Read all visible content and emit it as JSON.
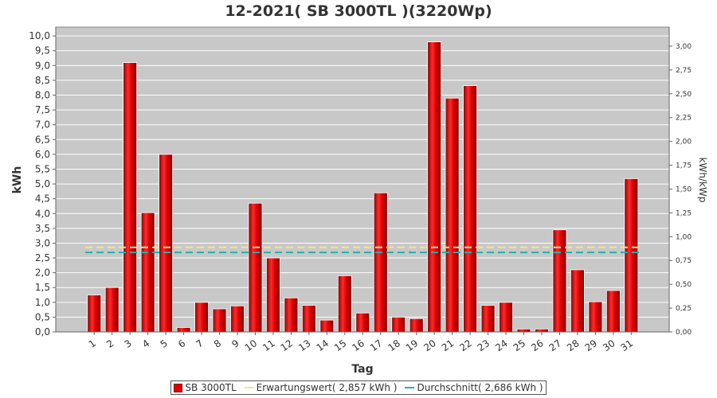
{
  "chart_data": {
    "type": "bar",
    "title": "12-2021( SB 3000TL )(3220Wp)",
    "xlabel": "Tag",
    "ylabel": "kWh",
    "y2label": "kWh/kWp",
    "categories": [
      "1",
      "2",
      "3",
      "4",
      "5",
      "6",
      "7",
      "8",
      "9",
      "10",
      "11",
      "12",
      "13",
      "14",
      "15",
      "16",
      "17",
      "18",
      "19",
      "20",
      "21",
      "22",
      "23",
      "24",
      "25",
      "26",
      "27",
      "28",
      "29",
      "30",
      "31"
    ],
    "series": [
      {
        "name": "SB 3000TL",
        "values": [
          1.25,
          1.5,
          9.1,
          4.03,
          6.0,
          0.15,
          1.0,
          0.78,
          0.88,
          4.35,
          2.5,
          1.15,
          0.9,
          0.4,
          1.9,
          0.64,
          4.7,
          0.5,
          0.45,
          9.8,
          7.9,
          8.32,
          0.9,
          1.0,
          0.1,
          0.1,
          3.45,
          2.1,
          1.02,
          1.4,
          5.18
        ]
      }
    ],
    "reference_lines": [
      {
        "name": "Erwartungswert( 2,857 kWh )",
        "value": 2.857,
        "color": "#f0e68c"
      },
      {
        "name": "Durchschnitt( 2,686 kWh )",
        "value": 2.686,
        "color": "#20b2aa"
      }
    ],
    "ylim": [
      0,
      10.3
    ],
    "yticks": [
      "0,0",
      "0,5",
      "1,0",
      "1,5",
      "2,0",
      "2,5",
      "3,0",
      "3,5",
      "4,0",
      "4,5",
      "5,0",
      "5,5",
      "6,0",
      "6,5",
      "7,0",
      "7,5",
      "8,0",
      "8,5",
      "9,0",
      "9,5",
      "10,0"
    ],
    "y2lim": [
      0,
      3.2
    ],
    "y2ticks": [
      "0,00",
      "0,25",
      "0,50",
      "0,75",
      "1,00",
      "1,25",
      "1,50",
      "1,75",
      "2,00",
      "2,25",
      "2,50",
      "2,75",
      "3,00"
    ],
    "grid": true,
    "legend_position": "bottom",
    "colors": {
      "bar": "#dd0000",
      "plot_background": "#c8c8c8",
      "grid": "#ffffff"
    }
  },
  "legend": {
    "bar_label": "SB 3000TL",
    "expect_label": "Erwartungswert( 2,857 kWh )",
    "avg_label": "Durchschnitt( 2,686 kWh )"
  }
}
